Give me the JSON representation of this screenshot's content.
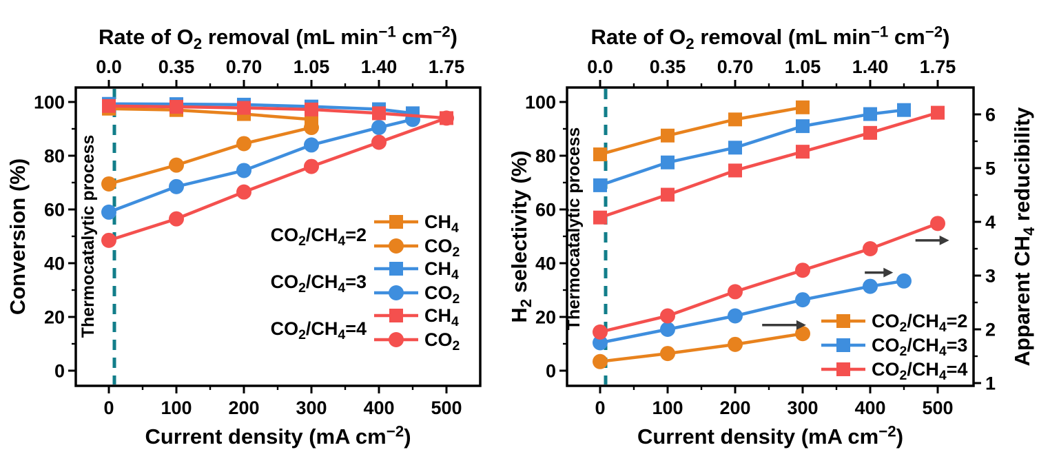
{
  "figure": {
    "background": "#FFFFFF",
    "colors": {
      "ratio2": "#E8821D",
      "ratio3": "#3E8EDE",
      "ratio4": "#F4504E",
      "dashed_line": "#127E8A",
      "arrow": "#3A3A3A",
      "axis": "#000000"
    }
  },
  "chart_data": [
    {
      "id": "conversion",
      "type": "line",
      "top_axis": {
        "label_text": "Rate of O2 removal (mL min-1 cm-2)",
        "label_segments": [
          [
            "Rate of O",
            "n"
          ],
          [
            "2",
            "s"
          ],
          [
            " removal (mL min",
            "n"
          ],
          [
            "−1",
            "p"
          ],
          [
            " cm",
            "n"
          ],
          [
            "−2",
            "p"
          ],
          [
            ")",
            "n"
          ]
        ],
        "tick_labels": [
          "0.0",
          "0.35",
          "0.70",
          "1.05",
          "1.40",
          "1.75"
        ],
        "tick_values_mA": [
          0,
          100,
          200,
          300,
          400,
          500
        ]
      },
      "x_axis": {
        "label_text": "Current density (mA cm-2)",
        "label_segments": [
          [
            "Current density (mA cm",
            "n"
          ],
          [
            "−2",
            "p"
          ],
          [
            ")",
            "n"
          ]
        ],
        "tick_labels": [
          "0",
          "100",
          "200",
          "300",
          "400",
          "500"
        ],
        "tick_values": [
          0,
          100,
          200,
          300,
          400,
          500
        ],
        "range": [
          -50,
          550
        ]
      },
      "y_axis": {
        "label_text": "Conversion (%)",
        "label_segments": [
          [
            "Conversion (%)",
            "n"
          ]
        ],
        "tick_labels": [
          "0",
          "20",
          "40",
          "60",
          "80",
          "100"
        ],
        "tick_values": [
          0,
          20,
          40,
          60,
          80,
          100
        ],
        "range": [
          -5.5,
          105.5
        ]
      },
      "annotation": {
        "text": "Thermocatalytic process"
      },
      "dashed_line_x_mA": 8,
      "series": [
        {
          "name": "CO2/CH4=2 CH4",
          "axis": "left",
          "marker": "square",
          "color_key": "ratio2",
          "x": [
            0,
            100,
            200,
            300
          ],
          "y": [
            97.5,
            97.0,
            95.5,
            93.5
          ]
        },
        {
          "name": "CO2/CH4=2 CO2",
          "axis": "left",
          "marker": "circle",
          "color_key": "ratio2",
          "x": [
            0,
            100,
            200,
            300
          ],
          "y": [
            69.5,
            76.5,
            84.5,
            90.5
          ]
        },
        {
          "name": "CO2/CH4=3 CH4",
          "axis": "left",
          "marker": "square",
          "color_key": "ratio3",
          "x": [
            0,
            100,
            200,
            300,
            400,
            450
          ],
          "y": [
            99.3,
            99.2,
            99.0,
            98.3,
            97.3,
            95.8
          ]
        },
        {
          "name": "CO2/CH4=3 CO2",
          "axis": "left",
          "marker": "circle",
          "color_key": "ratio3",
          "x": [
            0,
            100,
            200,
            300,
            400,
            450
          ],
          "y": [
            59.0,
            68.5,
            74.5,
            84.0,
            90.5,
            93.5
          ]
        },
        {
          "name": "CO2/CH4=4 CH4",
          "axis": "left",
          "marker": "square",
          "color_key": "ratio4",
          "x": [
            0,
            100,
            200,
            300,
            400,
            500
          ],
          "y": [
            98.5,
            98.2,
            97.8,
            97.2,
            95.8,
            94.0
          ]
        },
        {
          "name": "CO2/CH4=4 CO2",
          "axis": "left",
          "marker": "circle",
          "color_key": "ratio4",
          "x": [
            0,
            100,
            200,
            300,
            400,
            500
          ],
          "y": [
            48.5,
            56.5,
            66.5,
            76.0,
            85.0,
            94.0
          ]
        }
      ],
      "legend": {
        "style": "grouped",
        "groups": [
          {
            "label_text": "CO2/CH4=2",
            "label_segments": [
              [
                "CO",
                "n"
              ],
              [
                "2",
                "s"
              ],
              [
                "/CH",
                "n"
              ],
              [
                "4",
                "s"
              ],
              [
                "=2",
                "n"
              ]
            ],
            "entries": [
              {
                "marker": "square",
                "color_key": "ratio2",
                "label_text": "CH4",
                "label_segments": [
                  [
                    "CH",
                    "n"
                  ],
                  [
                    "4",
                    "s"
                  ]
                ]
              },
              {
                "marker": "circle",
                "color_key": "ratio2",
                "label_text": "CO2",
                "label_segments": [
                  [
                    "CO",
                    "n"
                  ],
                  [
                    "2",
                    "s"
                  ]
                ]
              }
            ]
          },
          {
            "label_text": "CO2/CH4=3",
            "label_segments": [
              [
                "CO",
                "n"
              ],
              [
                "2",
                "s"
              ],
              [
                "/CH",
                "n"
              ],
              [
                "4",
                "s"
              ],
              [
                "=3",
                "n"
              ]
            ],
            "entries": [
              {
                "marker": "square",
                "color_key": "ratio3",
                "label_text": "CH4",
                "label_segments": [
                  [
                    "CH",
                    "n"
                  ],
                  [
                    "4",
                    "s"
                  ]
                ]
              },
              {
                "marker": "circle",
                "color_key": "ratio3",
                "label_text": "CO2",
                "label_segments": [
                  [
                    "CO",
                    "n"
                  ],
                  [
                    "2",
                    "s"
                  ]
                ]
              }
            ]
          },
          {
            "label_text": "CO2/CH4=4",
            "label_segments": [
              [
                "CO",
                "n"
              ],
              [
                "2",
                "s"
              ],
              [
                "/CH",
                "n"
              ],
              [
                "4",
                "s"
              ],
              [
                "=4",
                "n"
              ]
            ],
            "entries": [
              {
                "marker": "square",
                "color_key": "ratio4",
                "label_text": "CH4",
                "label_segments": [
                  [
                    "CH",
                    "n"
                  ],
                  [
                    "4",
                    "s"
                  ]
                ]
              },
              {
                "marker": "circle",
                "color_key": "ratio4",
                "label_text": "CO2",
                "label_segments": [
                  [
                    "CO",
                    "n"
                  ],
                  [
                    "2",
                    "s"
                  ]
                ]
              }
            ]
          }
        ]
      }
    },
    {
      "id": "selectivity",
      "type": "line",
      "top_axis": {
        "label_text": "Rate of O2 removal (mL min-1 cm-2)",
        "label_segments": [
          [
            "Rate of O",
            "n"
          ],
          [
            "2",
            "s"
          ],
          [
            " removal (mL min",
            "n"
          ],
          [
            "−1",
            "p"
          ],
          [
            " cm",
            "n"
          ],
          [
            "−2",
            "p"
          ],
          [
            ")",
            "n"
          ]
        ],
        "tick_labels": [
          "0.0",
          "0.35",
          "0.70",
          "1.05",
          "1.40",
          "1.75"
        ],
        "tick_values_mA": [
          0,
          100,
          200,
          300,
          400,
          500
        ]
      },
      "x_axis": {
        "label_text": "Current density (mA cm-2)",
        "label_segments": [
          [
            "Current density (mA cm",
            "n"
          ],
          [
            "−2",
            "p"
          ],
          [
            ")",
            "n"
          ]
        ],
        "tick_labels": [
          "0",
          "100",
          "200",
          "300",
          "400",
          "500"
        ],
        "tick_values": [
          0,
          100,
          200,
          300,
          400,
          500
        ],
        "range": [
          -50,
          555
        ]
      },
      "y_axis": {
        "label_text": "H2 selectivity (%)",
        "label_segments": [
          [
            "H",
            "n"
          ],
          [
            "2",
            "s"
          ],
          [
            " selectivity (%)",
            "n"
          ]
        ],
        "tick_labels": [
          "0",
          "20",
          "40",
          "60",
          "80",
          "100"
        ],
        "tick_values": [
          0,
          20,
          40,
          60,
          80,
          100
        ],
        "range": [
          -5.5,
          105.5
        ]
      },
      "y2_axis": {
        "label_text": "Apparent CH4 reducibility",
        "label_segments": [
          [
            "Apparent CH",
            "n"
          ],
          [
            "4",
            "s"
          ],
          [
            " reducibility",
            "n"
          ]
        ],
        "tick_labels": [
          "1",
          "2",
          "3",
          "4",
          "5",
          "6"
        ],
        "tick_values": [
          1,
          2,
          3,
          4,
          5,
          6
        ],
        "range": [
          0.95,
          6.55
        ]
      },
      "annotation": {
        "text": "Thermocatalytic process"
      },
      "dashed_line_x_mA": 8,
      "series": [
        {
          "name": "CO2/CH4=2 H2 selectivity",
          "axis": "left",
          "marker": "square",
          "color_key": "ratio2",
          "x": [
            0,
            100,
            200,
            300
          ],
          "y": [
            80.5,
            87.5,
            93.5,
            98.0
          ]
        },
        {
          "name": "CO2/CH4=3 H2 selectivity",
          "axis": "left",
          "marker": "square",
          "color_key": "ratio3",
          "x": [
            0,
            100,
            200,
            300,
            400,
            450
          ],
          "y": [
            69.0,
            77.5,
            83.0,
            91.0,
            95.5,
            97.0
          ]
        },
        {
          "name": "CO2/CH4=4 H2 selectivity",
          "axis": "left",
          "marker": "square",
          "color_key": "ratio4",
          "x": [
            0,
            100,
            200,
            300,
            400,
            500
          ],
          "y": [
            57.0,
            65.5,
            74.5,
            81.5,
            88.5,
            96.0
          ]
        },
        {
          "name": "CO2/CH4=2 apparent CH4 reducibility",
          "axis": "right",
          "marker": "circle",
          "color_key": "ratio2",
          "x": [
            0,
            100,
            200,
            300
          ],
          "y": [
            1.4,
            1.55,
            1.72,
            1.92
          ]
        },
        {
          "name": "CO2/CH4=3 apparent CH4 reducibility",
          "axis": "right",
          "marker": "circle",
          "color_key": "ratio3",
          "x": [
            0,
            100,
            200,
            300,
            400,
            450
          ],
          "y": [
            1.75,
            2.0,
            2.25,
            2.55,
            2.8,
            2.9
          ]
        },
        {
          "name": "CO2/CH4=4 apparent CH4 reducibility",
          "axis": "right",
          "marker": "circle",
          "color_key": "ratio4",
          "x": [
            0,
            100,
            200,
            300,
            400,
            500
          ],
          "y": [
            1.95,
            2.25,
            2.7,
            3.1,
            3.5,
            3.97
          ]
        }
      ],
      "arrows": [
        {
          "x1_mA": 240,
          "x2_mA": 305,
          "y_pct": 17.0,
          "direction": "right"
        },
        {
          "x1_mA": 392,
          "x2_mA": 434,
          "y_pct": 36.5,
          "direction": "right"
        },
        {
          "x1_mA": 467,
          "x2_mA": 517,
          "y_pct": 48.5,
          "direction": "right"
        }
      ],
      "legend": {
        "style": "flat",
        "entries": [
          {
            "marker": "square",
            "color_key": "ratio2",
            "label_text": "CO2/CH4=2",
            "label_segments": [
              [
                "CO",
                "n"
              ],
              [
                "2",
                "s"
              ],
              [
                "/CH",
                "n"
              ],
              [
                "4",
                "s"
              ],
              [
                "=2",
                "n"
              ]
            ]
          },
          {
            "marker": "square",
            "color_key": "ratio3",
            "label_text": "CO2/CH4=3",
            "label_segments": [
              [
                "CO",
                "n"
              ],
              [
                "2",
                "s"
              ],
              [
                "/CH",
                "n"
              ],
              [
                "4",
                "s"
              ],
              [
                "=3",
                "n"
              ]
            ]
          },
          {
            "marker": "square",
            "color_key": "ratio4",
            "label_text": "CO2/CH4=4",
            "label_segments": [
              [
                "CO",
                "n"
              ],
              [
                "2",
                "s"
              ],
              [
                "/CH",
                "n"
              ],
              [
                "4",
                "s"
              ],
              [
                "=4",
                "n"
              ]
            ]
          }
        ]
      }
    }
  ]
}
